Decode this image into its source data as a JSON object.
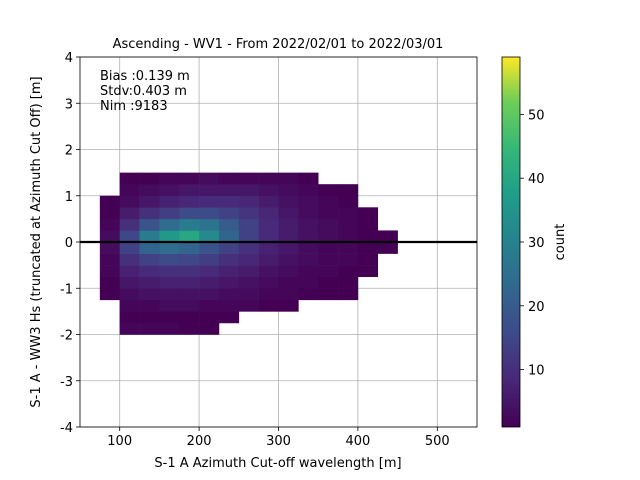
{
  "chart_data": {
    "type": "hist2d",
    "title": "Ascending - WV1 - From 2022/02/01 to 2022/03/01",
    "xlabel": "S-1 A Azimuth Cut-off wavelength [m]",
    "ylabel": "S-1 A - WW3 Hs (truncated at Azimuth Cut Off) [m]",
    "annotations": [
      "Bias :0.139 m",
      "Stdv:0.403 m",
      "Nim :9183"
    ],
    "xlim": [
      50,
      550
    ],
    "xticks": [
      100,
      200,
      300,
      400,
      500
    ],
    "ylim": [
      -4,
      4
    ],
    "yticks": [
      -4,
      -3,
      -2,
      -1,
      0,
      1,
      2,
      3,
      4
    ],
    "grid": true,
    "hline": 0,
    "colormap": "viridis",
    "clim": [
      1,
      59
    ],
    "cticks": [
      10,
      20,
      30,
      40,
      50
    ],
    "clabel": "count",
    "xbins": [
      75,
      100,
      125,
      150,
      175,
      200,
      225,
      250,
      275,
      300,
      325,
      350,
      375,
      400,
      425,
      450
    ],
    "ybins": [
      -2,
      -1.75,
      -1.5,
      -1.25,
      -1,
      -0.75,
      -0.5,
      -0.25,
      0,
      0.25,
      0.5,
      0.75,
      1,
      1.25,
      1.5
    ],
    "counts": [
      [
        null,
        2,
        2,
        2,
        1,
        1,
        null,
        null,
        null,
        null,
        null,
        null,
        null,
        null,
        null
      ],
      [
        null,
        1,
        1,
        1,
        1,
        1,
        1,
        null,
        null,
        null,
        null,
        null,
        null,
        null,
        null
      ],
      [
        null,
        2,
        2,
        3,
        3,
        2,
        2,
        2,
        1,
        1,
        null,
        null,
        null,
        null,
        null
      ],
      [
        1,
        3,
        4,
        4,
        4,
        4,
        3,
        3,
        2,
        2,
        1,
        1,
        1,
        null,
        null
      ],
      [
        1,
        5,
        6,
        7,
        7,
        6,
        5,
        4,
        3,
        2,
        2,
        1,
        1,
        null,
        null
      ],
      [
        2,
        7,
        9,
        10,
        10,
        9,
        7,
        6,
        4,
        3,
        2,
        2,
        1,
        1,
        null
      ],
      [
        2,
        10,
        14,
        16,
        15,
        13,
        10,
        8,
        6,
        4,
        3,
        2,
        2,
        1,
        null
      ],
      [
        3,
        14,
        22,
        24,
        22,
        18,
        14,
        10,
        7,
        5,
        3,
        2,
        2,
        1,
        1
      ],
      [
        3,
        15,
        28,
        36,
        40,
        32,
        22,
        14,
        9,
        6,
        4,
        3,
        2,
        1,
        1
      ],
      [
        2,
        10,
        18,
        24,
        28,
        26,
        20,
        14,
        9,
        6,
        4,
        3,
        2,
        1,
        null
      ],
      [
        1,
        6,
        10,
        13,
        16,
        16,
        14,
        11,
        8,
        5,
        3,
        2,
        2,
        1,
        null
      ],
      [
        1,
        3,
        5,
        7,
        8,
        9,
        9,
        8,
        6,
        4,
        3,
        2,
        1,
        null,
        null
      ],
      [
        null,
        2,
        3,
        4,
        5,
        5,
        5,
        5,
        4,
        3,
        2,
        1,
        1,
        null,
        null
      ],
      [
        null,
        1,
        1,
        2,
        2,
        3,
        2,
        2,
        2,
        2,
        1,
        null,
        null,
        null,
        null
      ]
    ]
  }
}
